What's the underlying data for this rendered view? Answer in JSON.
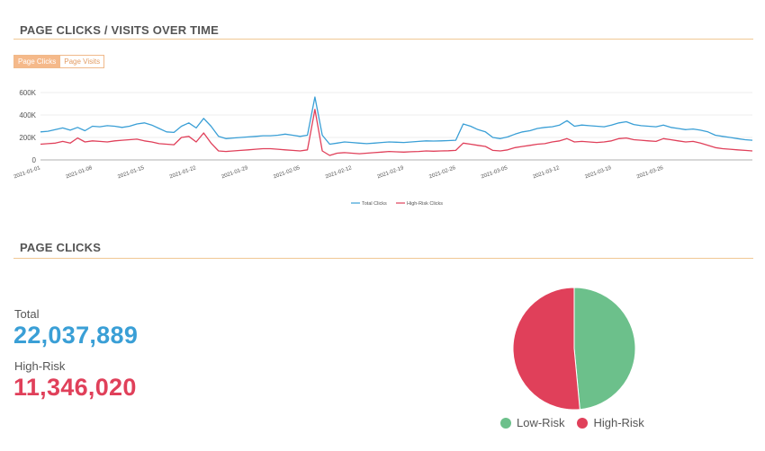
{
  "section1": {
    "title": "PAGE CLICKS / VISITS OVER TIME",
    "toggle_clicks": "Page Clicks",
    "toggle_visits": "Page Visits"
  },
  "section2": {
    "title": "PAGE CLICKS",
    "total_label": "Total",
    "total_value": "22,037,889",
    "highrisk_label": "High-Risk",
    "highrisk_value": "11,346,020",
    "legend_low": "Low-Risk",
    "legend_high": "High-Risk"
  },
  "colors": {
    "accent": "#f0c894",
    "total_blue": "#3a9fd6",
    "highrisk_red": "#e0405a",
    "lowrisk_green": "#6cc08b"
  },
  "chart_data": [
    {
      "type": "line",
      "x_tick_labels": [
        "2021-01-01",
        "2021-01-08",
        "2021-01-15",
        "2021-01-22",
        "2021-01-29",
        "2021-02-05",
        "2021-02-12",
        "2021-02-19",
        "2021-02-26",
        "2021-03-05",
        "2021-03-12",
        "2021-03-19",
        "2021-03-26"
      ],
      "y_tick_labels": [
        "600K",
        "400K",
        "200K",
        "0"
      ],
      "ylim": [
        0,
        600000
      ],
      "x_days": 95,
      "series": [
        {
          "name": "Total Clicks",
          "color": "#3a9fd6",
          "values": [
            250000,
            255000,
            270000,
            285000,
            265000,
            290000,
            260000,
            300000,
            295000,
            305000,
            300000,
            290000,
            300000,
            320000,
            330000,
            310000,
            280000,
            250000,
            245000,
            300000,
            330000,
            285000,
            370000,
            300000,
            210000,
            190000,
            195000,
            200000,
            205000,
            210000,
            215000,
            215000,
            220000,
            230000,
            220000,
            210000,
            220000,
            560000,
            220000,
            140000,
            150000,
            160000,
            155000,
            150000,
            145000,
            150000,
            155000,
            160000,
            158000,
            155000,
            160000,
            165000,
            170000,
            168000,
            170000,
            172000,
            175000,
            320000,
            300000,
            270000,
            250000,
            200000,
            190000,
            205000,
            230000,
            250000,
            260000,
            280000,
            290000,
            295000,
            310000,
            350000,
            300000,
            310000,
            305000,
            300000,
            295000,
            310000,
            330000,
            340000,
            315000,
            305000,
            300000,
            295000,
            310000,
            290000,
            280000,
            270000,
            275000,
            265000,
            250000,
            220000,
            210000,
            200000,
            190000,
            180000,
            175000
          ]
        },
        {
          "name": "High-Risk Clicks",
          "color": "#e0405a",
          "values": [
            140000,
            145000,
            150000,
            165000,
            150000,
            195000,
            160000,
            170000,
            165000,
            160000,
            170000,
            175000,
            180000,
            185000,
            170000,
            160000,
            145000,
            140000,
            135000,
            200000,
            210000,
            160000,
            240000,
            150000,
            80000,
            75000,
            80000,
            85000,
            90000,
            95000,
            100000,
            100000,
            95000,
            90000,
            85000,
            80000,
            90000,
            450000,
            80000,
            40000,
            60000,
            65000,
            60000,
            55000,
            60000,
            65000,
            70000,
            75000,
            72000,
            70000,
            73000,
            75000,
            80000,
            78000,
            80000,
            82000,
            85000,
            150000,
            140000,
            130000,
            120000,
            85000,
            80000,
            90000,
            110000,
            120000,
            130000,
            140000,
            145000,
            160000,
            170000,
            190000,
            160000,
            165000,
            160000,
            155000,
            160000,
            170000,
            190000,
            195000,
            180000,
            175000,
            170000,
            165000,
            190000,
            180000,
            170000,
            160000,
            165000,
            150000,
            130000,
            110000,
            100000,
            95000,
            90000,
            85000,
            80000
          ]
        }
      ]
    },
    {
      "type": "pie",
      "categories": [
        "Low-Risk",
        "High-Risk"
      ],
      "values": [
        10691869,
        11346020
      ],
      "colors": [
        "#6cc08b",
        "#e0405a"
      ]
    }
  ]
}
